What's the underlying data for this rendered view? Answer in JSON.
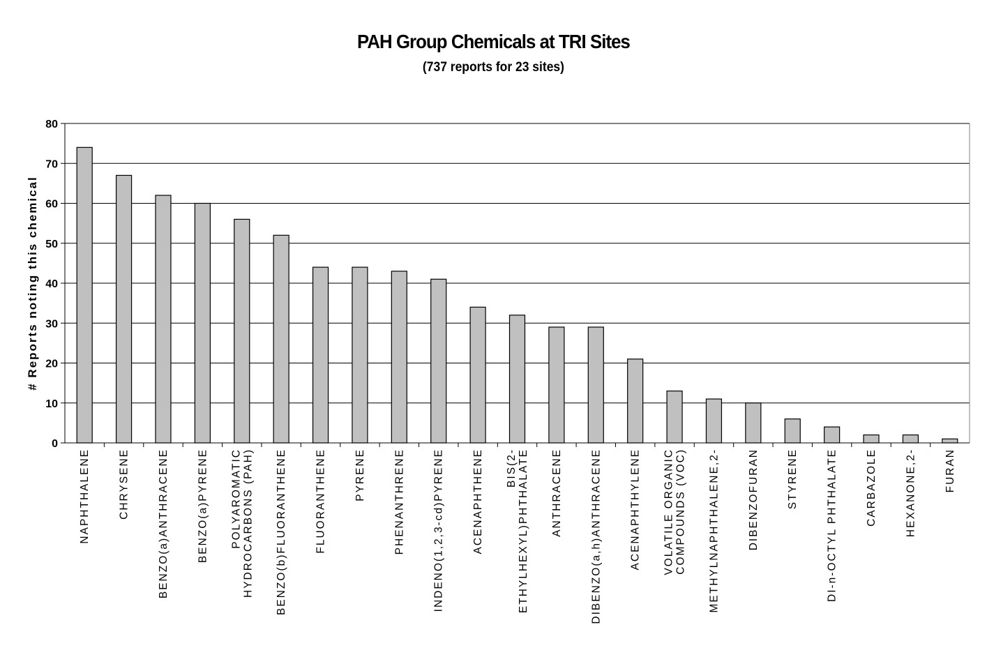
{
  "chart_data": {
    "type": "bar",
    "title": "PAH Group Chemicals at TRI Sites",
    "subtitle": "(737 reports for 23 sites)",
    "ylabel": "# Reports noting this chemical",
    "xlabel": "",
    "ylim": [
      0,
      80
    ],
    "yticks": [
      0,
      10,
      20,
      30,
      40,
      50,
      60,
      70,
      80
    ],
    "grid": "horizontal",
    "legend": "none",
    "bar_color": "#c0c0c0",
    "categories": [
      [
        "NAPHTHALENE"
      ],
      [
        "CHRYSENE"
      ],
      [
        "BENZO(a)ANTHRACENE"
      ],
      [
        "BENZO(a)PYRENE"
      ],
      [
        "POLYAROMATIC",
        "HYDROCARBONS (PAH)"
      ],
      [
        "BENZO(b)FLUORANTHENE"
      ],
      [
        "FLUORANTHENE"
      ],
      [
        "PYRENE"
      ],
      [
        "PHENANTHRENE"
      ],
      [
        "INDENO(1,2,3-cd)PYRENE"
      ],
      [
        "ACENAPHTHENE"
      ],
      [
        "BIS(2-",
        "ETHYLHEXYL)PHTHALATE"
      ],
      [
        "ANTHRACENE"
      ],
      [
        "DIBENZO(a,h)ANTHRACENE"
      ],
      [
        "ACENAPHTHYLENE"
      ],
      [
        "VOLATILE ORGANIC",
        "COMPOUNDS (VOC)"
      ],
      [
        "METHYLNAPHTHALENE,2-"
      ],
      [
        "DIBENZOFURAN"
      ],
      [
        "STYRENE"
      ],
      [
        "DI-n-OCTYL PHTHALATE"
      ],
      [
        "CARBAZOLE"
      ],
      [
        "HEXANONE,2-"
      ],
      [
        "FURAN"
      ]
    ],
    "values": [
      74,
      67,
      62,
      60,
      56,
      52,
      44,
      44,
      43,
      41,
      34,
      32,
      29,
      29,
      21,
      13,
      11,
      10,
      6,
      4,
      2,
      2,
      1
    ]
  }
}
